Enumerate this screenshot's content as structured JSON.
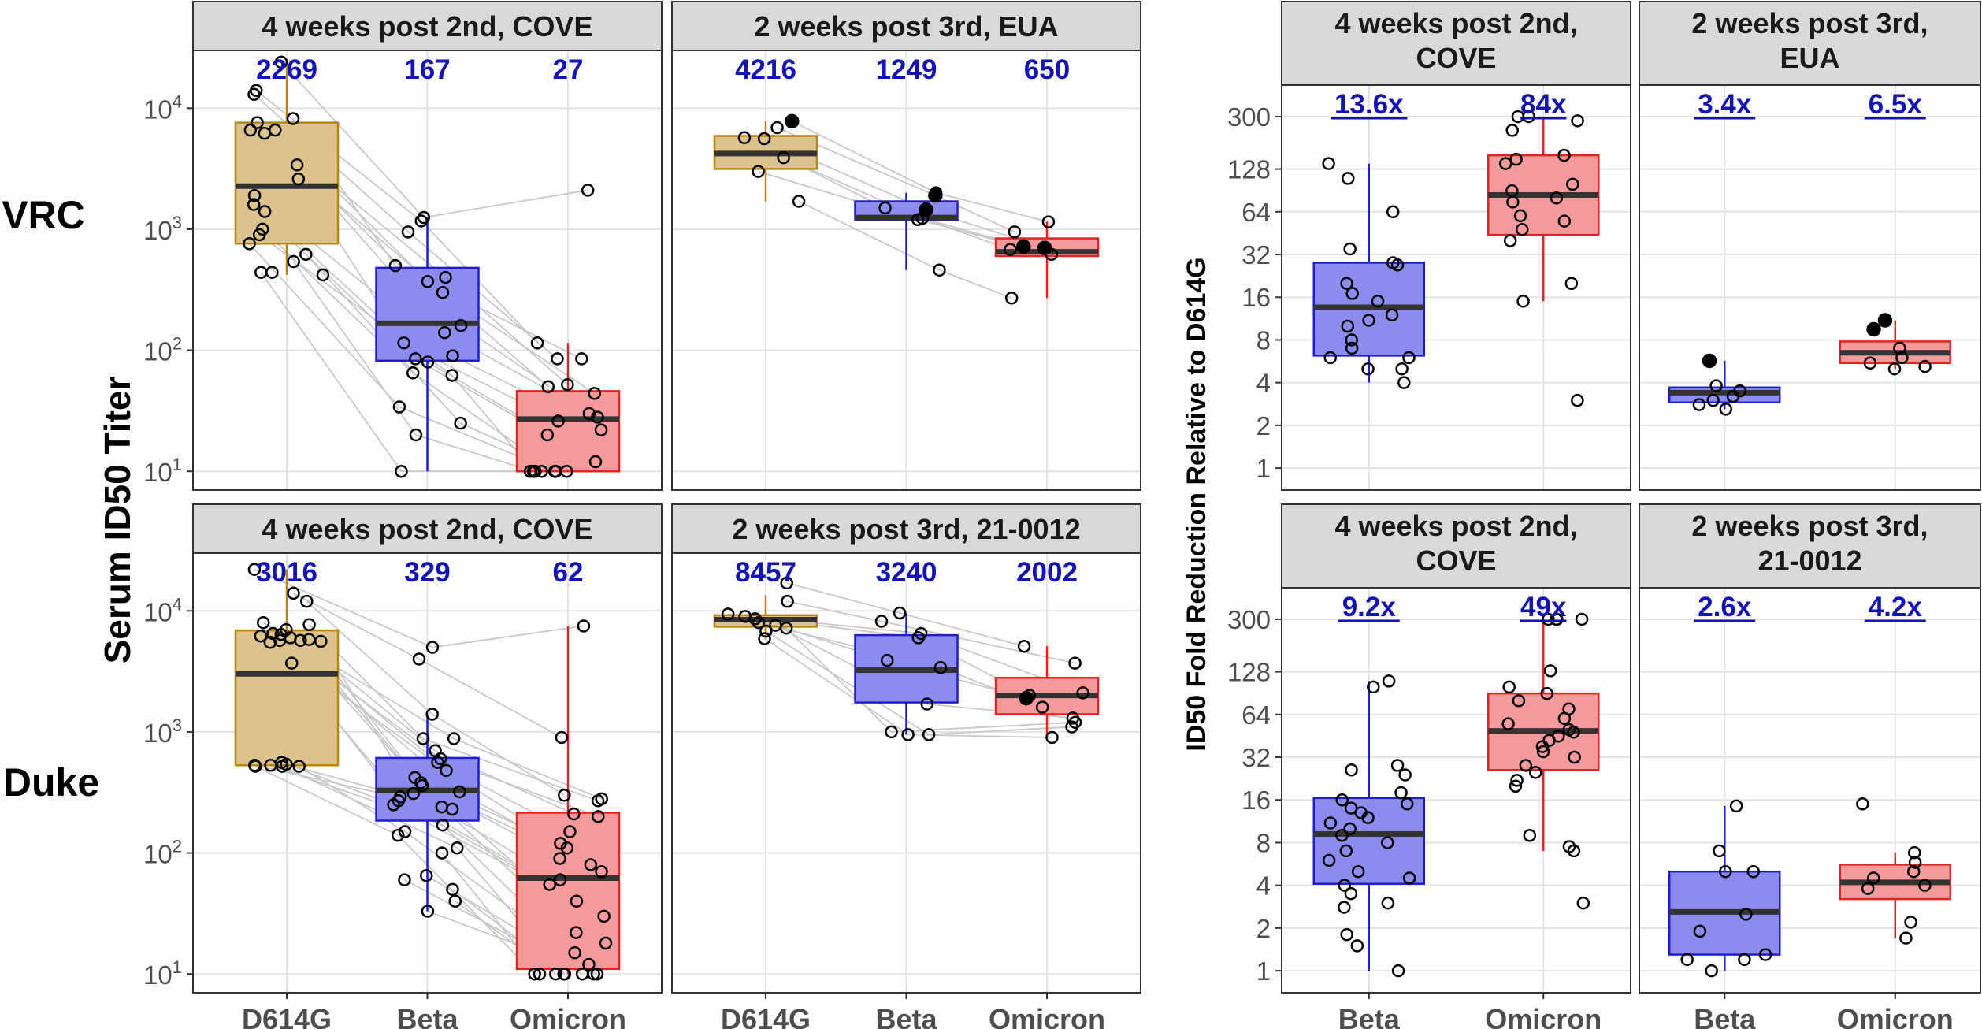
{
  "colors": {
    "D614G": {
      "fill": "#dcc38e",
      "stroke": "#b8860b"
    },
    "Beta": {
      "fill": "#8c8cee",
      "stroke": "#1f1fc8"
    },
    "Omicron": {
      "fill": "#f59a9a",
      "stroke": "#e02424"
    },
    "annotation": "#1414b4"
  },
  "figure": {
    "row_labels": [
      "VRC",
      "Duke"
    ],
    "left_ylabel": "Serum ID50 Titer",
    "right_ylabel": "ID50 Fold Reduction Relative to D614G"
  },
  "chart_data": [
    {
      "type": "box",
      "id": "vrc-cove",
      "title": "4 weeks post 2nd, COVE",
      "yscale": "log10",
      "ylim": [
        7,
        30000
      ],
      "yticks": [
        10,
        100,
        1000,
        10000
      ],
      "ytick_labels": [
        {
          "base": "10",
          "exp": "1"
        },
        {
          "base": "10",
          "exp": "2"
        },
        {
          "base": "10",
          "exp": "3"
        },
        {
          "base": "10",
          "exp": "4"
        }
      ],
      "categories": [
        "D614G",
        "Beta",
        "Omicron"
      ],
      "show_xlabels": false,
      "show_yticks": true,
      "annotations": [
        "2269",
        "167",
        "27"
      ],
      "paired_lines": true,
      "boxes": [
        {
          "q1": 760,
          "median": 2269,
          "q3": 7600,
          "whisker_low": 420,
          "whisker_high": 24000
        },
        {
          "q1": 82,
          "median": 167,
          "q3": 480,
          "whisker_low": 10,
          "whisker_high": 1250
        },
        {
          "q1": 10,
          "median": 27,
          "q3": 46,
          "whisker_low": 10,
          "whisker_high": 115
        }
      ],
      "points": [
        [
          24000,
          14000,
          13000,
          8200,
          7600,
          6600,
          6600,
          6200,
          3400,
          2600,
          1900,
          1600,
          1400,
          1000,
          900,
          760,
          620,
          540,
          440,
          420,
          440
        ],
        [
          1250,
          1170,
          950,
          500,
          400,
          370,
          300,
          160,
          140,
          115,
          90,
          85,
          80,
          65,
          62,
          34,
          25,
          20,
          10
        ],
        [
          2100,
          115,
          85,
          85,
          52,
          50,
          44,
          30,
          28,
          26,
          22,
          20,
          12,
          10,
          10,
          10,
          10,
          10,
          10,
          10,
          10
        ]
      ],
      "filled": [
        [],
        [],
        []
      ]
    },
    {
      "type": "box",
      "id": "vrc-eua",
      "title": "2 weeks post 3rd, EUA",
      "yscale": "log10",
      "ylim": [
        7,
        30000
      ],
      "categories": [
        "D614G",
        "Beta",
        "Omicron"
      ],
      "show_xlabels": false,
      "show_yticks": false,
      "annotations": [
        "4216",
        "1249",
        "650"
      ],
      "paired_lines": true,
      "boxes": [
        {
          "q1": 3150,
          "median": 4216,
          "q3": 5900,
          "whisker_low": 1700,
          "whisker_high": 7800
        },
        {
          "q1": 1200,
          "median": 1249,
          "q3": 1700,
          "whisker_low": 460,
          "whisker_high": 2000
        },
        {
          "q1": 600,
          "median": 650,
          "q3": 840,
          "whisker_low": 270,
          "whisker_high": 1150
        }
      ],
      "points": [
        [
          7800,
          6900,
          5700,
          5600,
          3900,
          3000,
          1700
        ],
        [
          2000,
          1900,
          1500,
          1450,
          1230,
          1200,
          460
        ],
        [
          1150,
          950,
          720,
          700,
          680,
          620,
          270
        ]
      ],
      "filled": [
        [
          0
        ],
        [
          1,
          3
        ],
        [
          2,
          3
        ]
      ]
    },
    {
      "type": "box",
      "id": "duke-cove",
      "title": "4 weeks post 2nd, COVE",
      "yscale": "log10",
      "ylim": [
        7,
        30000
      ],
      "yticks": [
        10,
        100,
        1000,
        10000
      ],
      "ytick_labels": [
        {
          "base": "10",
          "exp": "1"
        },
        {
          "base": "10",
          "exp": "2"
        },
        {
          "base": "10",
          "exp": "3"
        },
        {
          "base": "10",
          "exp": "4"
        }
      ],
      "categories": [
        "D614G",
        "Beta",
        "Omicron"
      ],
      "show_xlabels": true,
      "show_yticks": true,
      "annotations": [
        "3016",
        "329",
        "62"
      ],
      "paired_lines": true,
      "boxes": [
        {
          "q1": 530,
          "median": 3016,
          "q3": 6900,
          "whisker_low": 520,
          "whisker_high": 22000
        },
        {
          "q1": 185,
          "median": 329,
          "q3": 610,
          "whisker_low": 33,
          "whisker_high": 1400
        },
        {
          "q1": 11,
          "median": 62,
          "q3": 215,
          "whisker_low": 10,
          "whisker_high": 7500
        }
      ],
      "points": [
        [
          22000,
          14000,
          12000,
          8000,
          7700,
          7000,
          6500,
          6400,
          6200,
          6000,
          5800,
          5700,
          5700,
          5600,
          5500,
          3700,
          560,
          540,
          530,
          530,
          520,
          520,
          520
        ],
        [
          5000,
          4000,
          1400,
          880,
          880,
          700,
          600,
          560,
          480,
          420,
          380,
          360,
          320,
          310,
          290,
          270,
          250,
          240,
          230,
          170,
          150,
          140,
          110,
          100,
          65,
          60,
          50,
          40,
          33
        ],
        [
          7500,
          900,
          300,
          280,
          270,
          210,
          200,
          150,
          120,
          110,
          90,
          80,
          70,
          60,
          55,
          40,
          30,
          22,
          18,
          15,
          12,
          10,
          10,
          10,
          10,
          10,
          10,
          10,
          10
        ]
      ],
      "filled": [
        [],
        [],
        []
      ]
    },
    {
      "type": "box",
      "id": "duke-21-0012",
      "title": "2 weeks post 3rd, 21-0012",
      "yscale": "log10",
      "ylim": [
        7,
        30000
      ],
      "categories": [
        "D614G",
        "Beta",
        "Omicron"
      ],
      "show_xlabels": true,
      "show_yticks": false,
      "annotations": [
        "8457",
        "3240",
        "2002"
      ],
      "paired_lines": true,
      "boxes": [
        {
          "q1": 7400,
          "median": 8457,
          "q3": 9200,
          "whisker_low": 5900,
          "whisker_high": 13500
        },
        {
          "q1": 1750,
          "median": 3240,
          "q3": 6300,
          "whisker_low": 950,
          "whisker_high": 9600
        },
        {
          "q1": 1400,
          "median": 2002,
          "q3": 2800,
          "whisker_low": 900,
          "whisker_high": 5100
        }
      ],
      "points": [
        [
          17000,
          12000,
          9400,
          9000,
          8600,
          8000,
          7600,
          7200,
          6800,
          5900
        ],
        [
          9600,
          8200,
          6500,
          6000,
          3900,
          3400,
          1700,
          1000,
          950,
          950
        ],
        [
          5100,
          3700,
          2100,
          2000,
          1900,
          1600,
          1300,
          1200,
          1100,
          900
        ]
      ],
      "filled": [
        [],
        [],
        [
          4
        ]
      ]
    },
    {
      "type": "box",
      "id": "fold-vrc-cove",
      "title": "4 weeks post 2nd,\nCOVE",
      "yscale": "log2",
      "ylim": [
        0.7,
        500
      ],
      "yticks": [
        1,
        2,
        4,
        8,
        16,
        32,
        64,
        128,
        300
      ],
      "ytick_labels": [
        "1",
        "2",
        "4",
        "8",
        "16",
        "32",
        "64",
        "128",
        "300"
      ],
      "categories": [
        "Beta",
        "Omicron"
      ],
      "show_xlabels": false,
      "show_yticks": true,
      "annotations": [
        "13.6x",
        "84x"
      ],
      "annotations_underlined": true,
      "paired_lines": false,
      "boxes": [
        {
          "q1": 6.2,
          "median": 13.6,
          "q3": 28,
          "whisker_low": 4,
          "whisker_high": 140
        },
        {
          "q1": 44,
          "median": 84,
          "q3": 160,
          "whisker_low": 15,
          "whisker_high": 300
        },
        {}
      ],
      "points": [
        [
          140,
          110,
          64,
          35,
          28,
          27,
          20,
          17,
          15,
          12,
          11,
          10,
          8,
          7,
          6,
          6,
          5,
          5,
          4
        ],
        [
          300,
          300,
          280,
          240,
          160,
          150,
          140,
          100,
          90,
          80,
          75,
          60,
          55,
          48,
          40,
          20,
          15,
          3
        ]
      ],
      "filled": [
        [],
        []
      ]
    },
    {
      "type": "box",
      "id": "fold-vrc-eua",
      "title": "2 weeks post 3rd,\nEUA",
      "yscale": "log2",
      "ylim": [
        0.7,
        500
      ],
      "categories": [
        "Beta",
        "Omicron"
      ],
      "show_xlabels": false,
      "show_yticks": false,
      "annotations": [
        "3.4x",
        "6.5x"
      ],
      "annotations_underlined": true,
      "paired_lines": false,
      "boxes": [
        {
          "q1": 2.9,
          "median": 3.4,
          "q3": 3.7,
          "whisker_low": 2.6,
          "whisker_high": 5.7
        },
        {
          "q1": 5.5,
          "median": 6.5,
          "q3": 7.8,
          "whisker_low": 5.0,
          "whisker_high": 11
        },
        {}
      ],
      "points": [
        [
          5.7,
          3.8,
          3.5,
          3.2,
          3.0,
          2.8,
          2.6
        ],
        [
          11,
          9.5,
          7.0,
          6.0,
          5.5,
          5.2,
          5.0
        ]
      ],
      "filled": [
        [
          0
        ],
        [
          0,
          1
        ]
      ]
    },
    {
      "type": "box",
      "id": "fold-duke-cove",
      "title": "4 weeks post 2nd,\nCOVE",
      "yscale": "log2",
      "ylim": [
        0.7,
        500
      ],
      "yticks": [
        1,
        2,
        4,
        8,
        16,
        32,
        64,
        128,
        300
      ],
      "ytick_labels": [
        "1",
        "2",
        "4",
        "8",
        "16",
        "32",
        "64",
        "128",
        "300"
      ],
      "categories": [
        "Beta",
        "Omicron"
      ],
      "show_xlabels": true,
      "show_yticks": true,
      "annotations": [
        "9.2x",
        "49x"
      ],
      "annotations_underlined": true,
      "paired_lines": false,
      "boxes": [
        {
          "q1": 4.1,
          "median": 9.2,
          "q3": 16.5,
          "whisker_low": 1.0,
          "whisker_high": 110
        },
        {
          "q1": 26,
          "median": 49,
          "q3": 90,
          "whisker_low": 7,
          "whisker_high": 300
        },
        {}
      ],
      "points": [
        [
          110,
          100,
          28,
          26,
          24,
          18,
          16,
          15,
          14,
          13,
          12,
          11,
          10,
          9,
          8,
          7,
          6,
          5,
          4.5,
          4,
          3.5,
          3,
          2.8,
          1.8,
          1.5,
          1.0
        ],
        [
          300,
          300,
          300,
          300,
          130,
          100,
          90,
          80,
          70,
          60,
          55,
          50,
          48,
          45,
          42,
          38,
          35,
          32,
          28,
          25,
          22,
          20,
          9,
          7.5,
          7,
          3
        ]
      ],
      "filled": [
        [],
        []
      ]
    },
    {
      "type": "box",
      "id": "fold-duke-21-0012",
      "title": "2 weeks post 3rd,\n21-0012",
      "yscale": "log2",
      "ylim": [
        0.7,
        500
      ],
      "categories": [
        "Beta",
        "Omicron"
      ],
      "show_xlabels": true,
      "show_yticks": false,
      "annotations": [
        "2.6x",
        "4.2x"
      ],
      "annotations_underlined": true,
      "paired_lines": false,
      "boxes": [
        {
          "q1": 1.3,
          "median": 2.6,
          "q3": 5.0,
          "whisker_low": 1.0,
          "whisker_high": 14.5
        },
        {
          "q1": 3.2,
          "median": 4.2,
          "q3": 5.6,
          "whisker_low": 1.7,
          "whisker_high": 6.8
        },
        {}
      ],
      "points": [
        [
          14.5,
          7.0,
          5.0,
          5.0,
          2.5,
          1.9,
          1.3,
          1.2,
          1.0,
          1.2
        ],
        [
          15,
          6.8,
          5.8,
          5.0,
          4.5,
          4.0,
          3.8,
          2.2,
          1.7
        ]
      ],
      "filled": [
        [],
        []
      ]
    }
  ]
}
